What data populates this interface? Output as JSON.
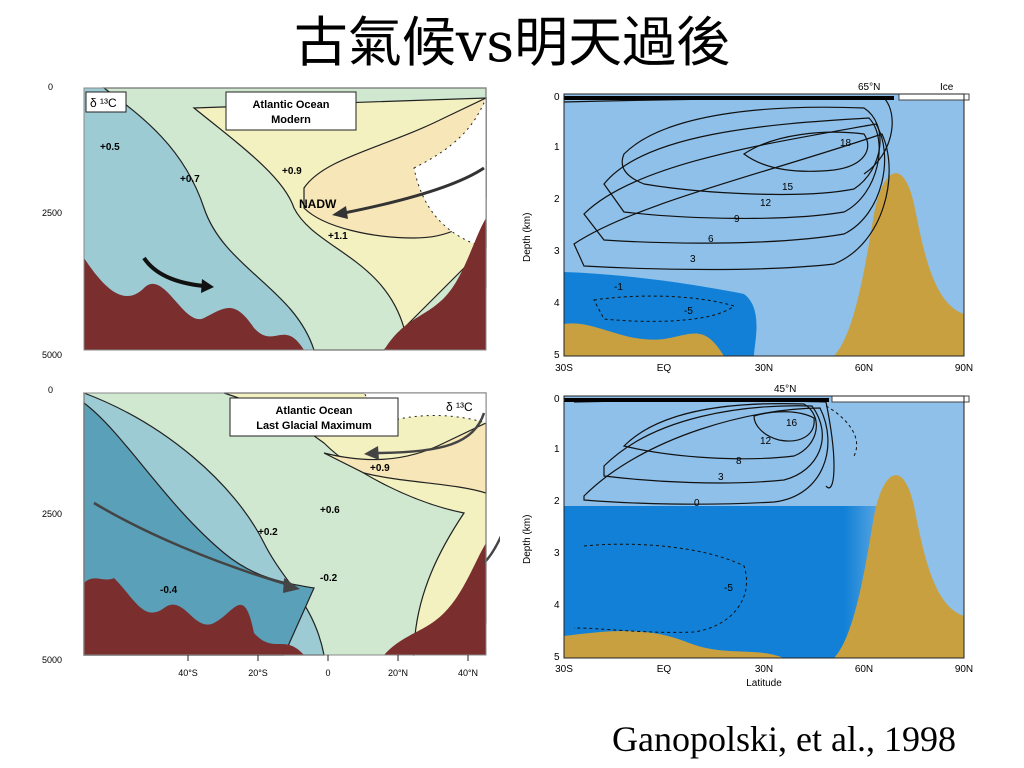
{
  "title": "古氣候vs明天過後",
  "citation": "Ganopolski,  et   al.,  1998",
  "colors": {
    "seafloor": "#7a2e2e",
    "d13c_low": "#5aa0b8",
    "d13c_midlow": "#9ccbd4",
    "d13c_mid": "#cfe8cf",
    "d13c_high": "#f3f1c0",
    "d13c_top": "#f7e6b8",
    "model_light": "#8ec0ea",
    "model_dark": "#1180d6",
    "topography": "#c8a040"
  },
  "left_panels": {
    "y_ticks": [
      "0",
      "2500",
      "5000"
    ],
    "x_ticks": [
      "40°S",
      "20°S",
      "0",
      "20°N",
      "40°N"
    ],
    "delta_label": "δ ¹³C",
    "modern": {
      "box_line1": "Atlantic Ocean",
      "box_line2": "Modern",
      "contours": [
        "+0.5",
        "+0.7",
        "+0.9",
        "+1.1"
      ],
      "water_mass": "NADW"
    },
    "lgm": {
      "box_line1": "Atlantic Ocean",
      "box_line2": "Last Glacial Maximum",
      "contours": [
        "-0.4",
        "+0.2",
        "-0.2",
        "+0.6",
        "+0.9"
      ]
    }
  },
  "right_panels": {
    "x_ticks": [
      "30S",
      "EQ",
      "30N",
      "60N",
      "90N"
    ],
    "y_ticks": [
      "0",
      "1",
      "2",
      "3",
      "4",
      "5"
    ],
    "ylabel": "Depth (km)",
    "xlabel": "Latitude",
    "top": {
      "marker": "65°N",
      "ice": "Ice",
      "contours": [
        "18",
        "15",
        "12",
        "9",
        "6",
        "3",
        "-1",
        "-5"
      ]
    },
    "bottom": {
      "marker": "45°N",
      "contours": [
        "16",
        "12",
        "8",
        "3",
        "0",
        "-5"
      ]
    }
  }
}
